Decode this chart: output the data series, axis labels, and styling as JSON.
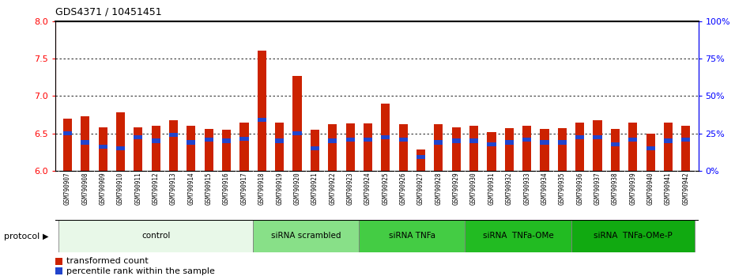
{
  "title": "GDS4371 / 10451451",
  "samples": [
    "GSM790907",
    "GSM790908",
    "GSM790909",
    "GSM790910",
    "GSM790911",
    "GSM790912",
    "GSM790913",
    "GSM790914",
    "GSM790915",
    "GSM790916",
    "GSM790917",
    "GSM790918",
    "GSM790919",
    "GSM790920",
    "GSM790921",
    "GSM790922",
    "GSM790923",
    "GSM790924",
    "GSM790925",
    "GSM790926",
    "GSM790927",
    "GSM790928",
    "GSM790929",
    "GSM790930",
    "GSM790931",
    "GSM790932",
    "GSM790933",
    "GSM790934",
    "GSM790935",
    "GSM790936",
    "GSM790937",
    "GSM790938",
    "GSM790939",
    "GSM790940",
    "GSM790941",
    "GSM790942"
  ],
  "red_values": [
    6.7,
    6.73,
    6.58,
    6.78,
    6.58,
    6.6,
    6.67,
    6.6,
    6.56,
    6.55,
    6.64,
    7.6,
    6.64,
    7.27,
    6.55,
    6.62,
    6.63,
    6.63,
    6.9,
    6.62,
    6.28,
    6.62,
    6.58,
    6.6,
    6.52,
    6.57,
    6.6,
    6.56,
    6.57,
    6.64,
    6.68,
    6.56,
    6.64,
    6.5,
    6.64,
    6.6
  ],
  "blue_values": [
    6.5,
    6.38,
    6.32,
    6.3,
    6.45,
    6.4,
    6.48,
    6.38,
    6.42,
    6.4,
    6.43,
    6.68,
    6.4,
    6.5,
    6.3,
    6.4,
    6.42,
    6.42,
    6.45,
    6.42,
    6.18,
    6.38,
    6.4,
    6.4,
    6.35,
    6.38,
    6.42,
    6.38,
    6.38,
    6.45,
    6.45,
    6.35,
    6.42,
    6.3,
    6.4,
    6.42
  ],
  "groups": [
    {
      "label": "control",
      "start": 0,
      "end": 11,
      "color": "#e8f8e8"
    },
    {
      "label": "siRNA scrambled",
      "start": 11,
      "end": 17,
      "color": "#88e088"
    },
    {
      "label": "siRNA TNFa",
      "start": 17,
      "end": 23,
      "color": "#44cc44"
    },
    {
      "label": "siRNA  TNFa-OMe",
      "start": 23,
      "end": 29,
      "color": "#22bb22"
    },
    {
      "label": "siRNA  TNFa-OMe-P",
      "start": 29,
      "end": 36,
      "color": "#11aa11"
    }
  ],
  "ylim": [
    6.0,
    8.0
  ],
  "yticks_left": [
    6.0,
    6.5,
    7.0,
    7.5,
    8.0
  ],
  "yticks_right": [
    0,
    25,
    50,
    75,
    100
  ],
  "bar_color": "#cc2200",
  "blue_color": "#2244cc",
  "bar_width": 0.5,
  "xticklabel_bg": "#d8d8d8",
  "protocol_label": "protocol",
  "legend1": "transformed count",
  "legend2": "percentile rank within the sample"
}
